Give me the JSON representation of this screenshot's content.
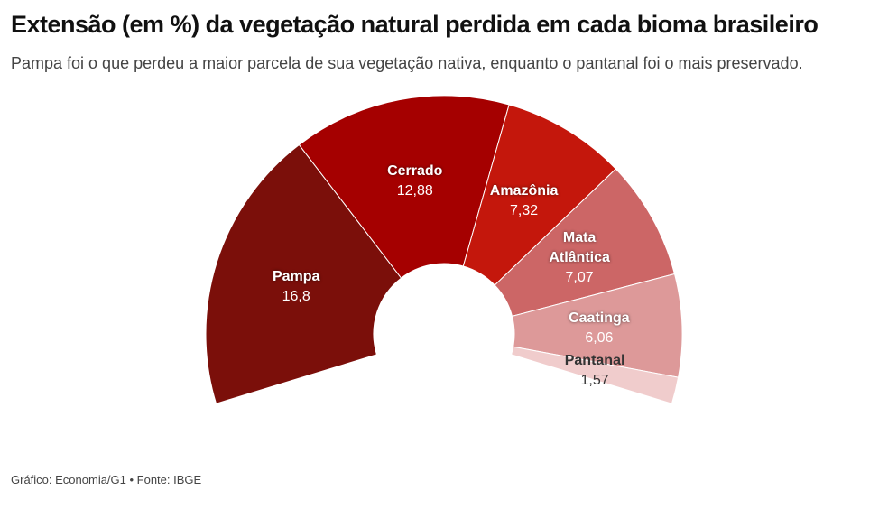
{
  "chart_data": {
    "type": "pie",
    "title": "Extensão (em %) da vegetação natural perdida em cada bioma brasileiro",
    "subtitle": "Pampa foi o que perdeu a maior parcela de sua vegetação nativa, enquanto o pantanal foi o mais preservado.",
    "source": "Gráfico: Economia/G1 • Fonte: IBGE",
    "categories": [
      "Pampa",
      "Cerrado",
      "Amazônia",
      "Mata Atlântica",
      "Caatinga",
      "Pantanal"
    ],
    "values": [
      16.8,
      12.88,
      7.32,
      7.07,
      6.06,
      1.57
    ],
    "value_labels": [
      "16,8",
      "12,88",
      "7,32",
      "7,07",
      "6,06",
      "1,57"
    ],
    "colors": [
      "#7b0f0a",
      "#a50000",
      "#c4170c",
      "#cc6666",
      "#dd9999",
      "#f0cccc"
    ]
  }
}
